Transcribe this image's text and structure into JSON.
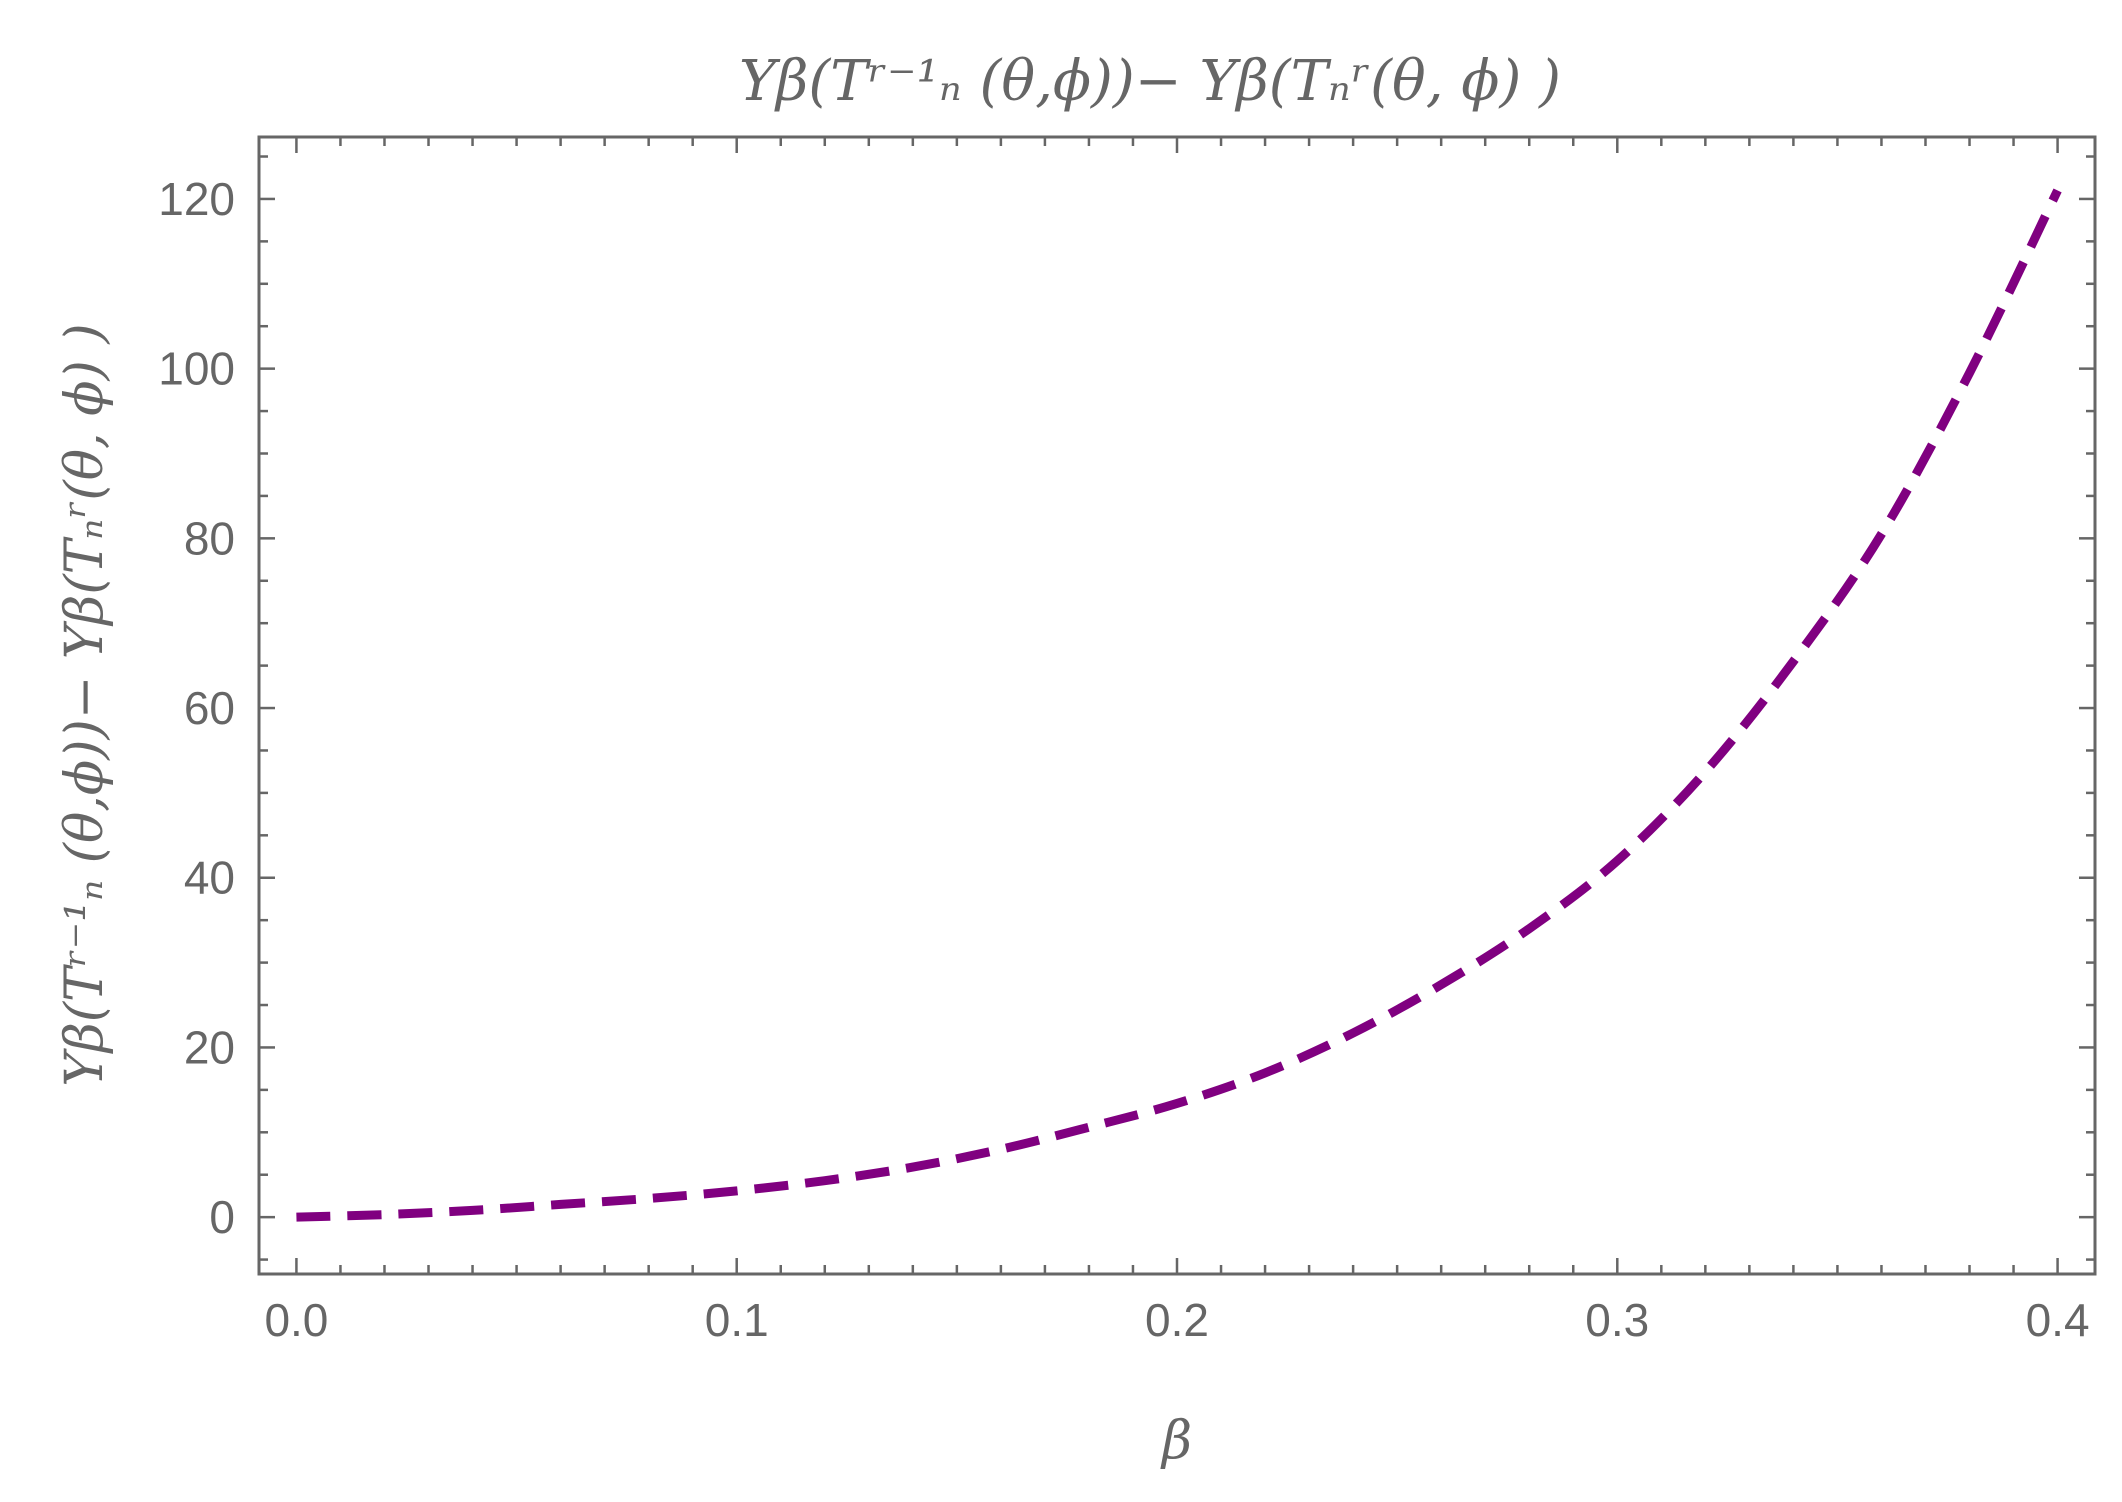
{
  "chart_data": {
    "type": "line",
    "title": "Yβ(Tʳ⁻¹ₙ (θ,ϕ))− Yβ(Tₙʳ(θ, ϕ) )",
    "xlabel": "β",
    "ylabel": "Yβ(Tʳ⁻¹ₙ (θ,ϕ))− Yβ(Tₙʳ(θ, ϕ) )",
    "xlim": [
      -0.0085,
      0.4085
    ],
    "ylim": [
      -6.7,
      127.3
    ],
    "x_ticks": [
      0.0,
      0.1,
      0.2,
      0.3,
      0.4
    ],
    "x_tick_labels": [
      "0.0",
      "0.1",
      "0.2",
      "0.3",
      "0.4"
    ],
    "y_ticks": [
      0,
      20,
      40,
      60,
      80,
      100,
      120
    ],
    "y_tick_labels": [
      "0",
      "20",
      "40",
      "60",
      "80",
      "100",
      "120"
    ],
    "grid": false,
    "series": [
      {
        "color": "#800080",
        "style": "dashed",
        "x": [
          0.0,
          0.02,
          0.04,
          0.06,
          0.08,
          0.1,
          0.12,
          0.14,
          0.16,
          0.18,
          0.2,
          0.22,
          0.24,
          0.26,
          0.28,
          0.3,
          0.32,
          0.34,
          0.36,
          0.38,
          0.4
        ],
        "y": [
          0.0,
          0.3,
          0.8,
          1.5,
          2.2,
          3.1,
          4.3,
          5.9,
          8.0,
          10.6,
          13.4,
          17.0,
          21.7,
          27.4,
          34.0,
          42.0,
          52.5,
          65.5,
          80.5,
          99.5,
          121.0
        ]
      }
    ]
  }
}
